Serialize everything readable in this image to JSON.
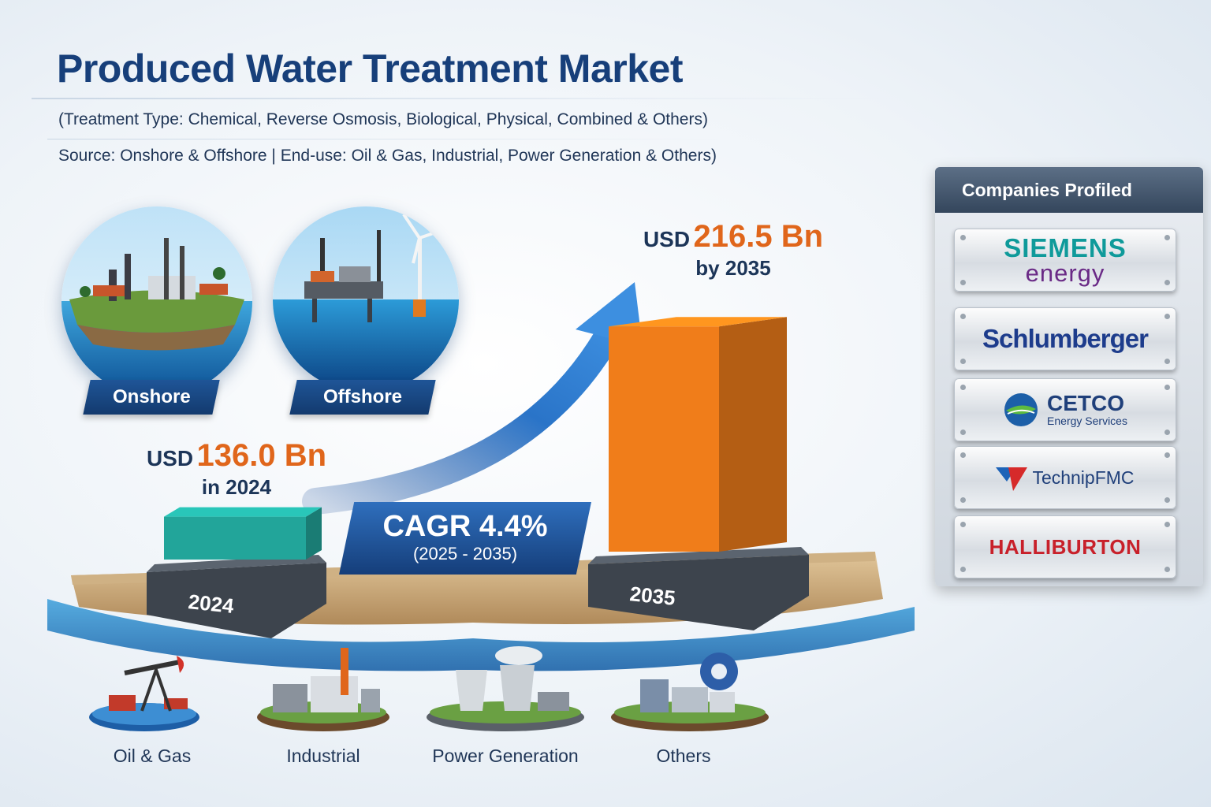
{
  "header": {
    "title": "Produced Water Treatment Market",
    "subtitle": "(Treatment Type: Chemical, Reverse Osmosis, Biological, Physical, Combined & Others)",
    "source_line": "Source: Onshore & Offshore | End-use: Oil & Gas, Industrial, Power Generation & Others)"
  },
  "sources": {
    "onshore": "Onshore",
    "offshore": "Offshore"
  },
  "callouts": {
    "start": {
      "prefix": "USD",
      "value": "136.0 Bn",
      "sub": "in 2024"
    },
    "end": {
      "prefix": "USD",
      "value": "216.5 Bn",
      "sub": "by 2035"
    }
  },
  "cagr": {
    "main": "CAGR 4.4%",
    "period": "(2025 - 2035)"
  },
  "chart_data": {
    "type": "bar",
    "categories": [
      "2024",
      "2035"
    ],
    "values": [
      136.0,
      216.5
    ],
    "ylim": [
      0,
      230
    ],
    "colors": [
      "#22a59a",
      "#f07d1a"
    ]
  },
  "companies": {
    "heading": "Companies Profiled",
    "siemens_line1": "SIEMENS",
    "siemens_line2": "energy",
    "schlumberger": "Schlumberger",
    "cetco_name": "CETCO",
    "cetco_sub": "Energy Services",
    "technipfmc": "TechnipFMC",
    "halliburton": "HALLIBURTON"
  },
  "end_use": {
    "oil_gas": "Oil & Gas",
    "industrial": "Industrial",
    "power": "Power Generation",
    "others": "Others"
  },
  "colors": {
    "title": "#173f7a",
    "accent": "#e0661b",
    "teal": "#22a59a",
    "orange": "#f07d1a",
    "blue": "#1f5597"
  }
}
